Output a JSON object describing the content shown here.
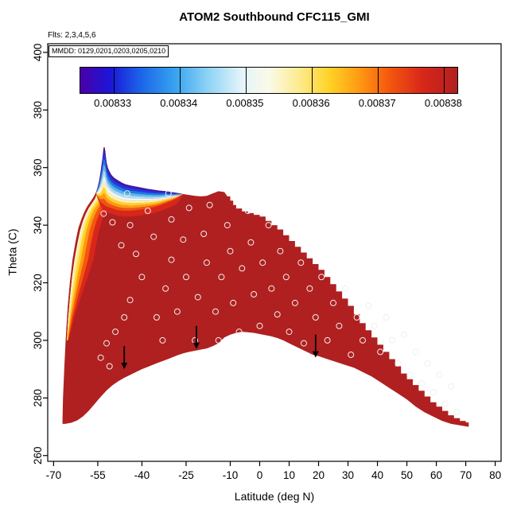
{
  "title": "ATOM2 Southbound CFC115_GMI",
  "annotations": {
    "flights": "Flts: 2,3,4,5,6",
    "mmdd": "MMDD: 0129,0201,0203,0205,0210"
  },
  "chart_data": {
    "type": "filled_contour",
    "title": "ATOM2 Southbound CFC115_GMI",
    "xlabel": "Latitude (deg N)",
    "ylabel": "Theta (C)",
    "x_ticks": [
      -70,
      -55,
      -40,
      -25,
      -10,
      0,
      10,
      20,
      30,
      40,
      50,
      60,
      70,
      80
    ],
    "y_ticks": [
      260,
      280,
      300,
      320,
      340,
      360,
      380,
      400
    ],
    "xlim": [
      -72,
      82
    ],
    "ylim": [
      258,
      403
    ],
    "grid": false,
    "legend_position": "top-inside",
    "colorbar": {
      "label_values": [
        "0.00833",
        "0.00834",
        "0.00835",
        "0.00836",
        "0.00837",
        "0.00838"
      ],
      "tick_values": [
        0.00833,
        0.00834,
        0.00835,
        0.00836,
        0.00837,
        0.00838
      ],
      "range": [
        0.008325,
        0.008382
      ],
      "gradient": [
        [
          0,
          "#4a00a8"
        ],
        [
          0.08,
          "#1b16d8"
        ],
        [
          0.16,
          "#1c64e8"
        ],
        [
          0.25,
          "#36a3f0"
        ],
        [
          0.34,
          "#90d4f5"
        ],
        [
          0.43,
          "#e4f5fa"
        ],
        [
          0.5,
          "#fafae8"
        ],
        [
          0.58,
          "#fdeb90"
        ],
        [
          0.66,
          "#ffd326"
        ],
        [
          0.74,
          "#ff9a12"
        ],
        [
          0.82,
          "#f4570e"
        ],
        [
          0.91,
          "#d8261a"
        ],
        [
          1,
          "#b02020"
        ]
      ]
    },
    "base_fill": "#b02020",
    "step_from_lat": -11,
    "top_edge": [
      [
        -67,
        271
      ],
      [
        -66.8,
        280
      ],
      [
        -66.3,
        292
      ],
      [
        -65.8,
        302
      ],
      [
        -65.2,
        312
      ],
      [
        -64.5,
        320
      ],
      [
        -63.6,
        328
      ],
      [
        -62.6,
        334
      ],
      [
        -61.6,
        339
      ],
      [
        -60.6,
        342
      ],
      [
        -59.6,
        344.5
      ],
      [
        -58.6,
        346.5
      ],
      [
        -57.6,
        348
      ],
      [
        -56.6,
        349.5
      ],
      [
        -55.8,
        351
      ],
      [
        -55.2,
        352.5
      ],
      [
        -54.6,
        355
      ],
      [
        -54.1,
        358
      ],
      [
        -53.7,
        361
      ],
      [
        -53.3,
        364
      ],
      [
        -53,
        367
      ],
      [
        -52.6,
        367
      ],
      [
        -52.2,
        363
      ],
      [
        -51.8,
        360.5
      ],
      [
        -51.2,
        359
      ],
      [
        -50.4,
        357.5
      ],
      [
        -49.5,
        356.5
      ],
      [
        -48.5,
        355.8
      ],
      [
        -47.5,
        355.2
      ],
      [
        -46.5,
        354.6
      ],
      [
        -45.5,
        354.2
      ],
      [
        -44,
        353.8
      ],
      [
        -42,
        353.4
      ],
      [
        -40,
        353
      ],
      [
        -38,
        352.6
      ],
      [
        -36,
        352.3
      ],
      [
        -34,
        352
      ],
      [
        -32,
        351.8
      ],
      [
        -30,
        351.5
      ],
      [
        -28,
        351.2
      ],
      [
        -26,
        350.8
      ],
      [
        -24,
        350.5
      ],
      [
        -22,
        350.2
      ],
      [
        -20,
        350
      ],
      [
        -18,
        350.2
      ],
      [
        -16,
        351
      ],
      [
        -14,
        351.8
      ],
      [
        -12,
        351.5
      ],
      [
        -11,
        350
      ],
      [
        -10,
        348.5
      ],
      [
        -9,
        347
      ],
      [
        -8,
        345.8
      ],
      [
        -6,
        344.8
      ],
      [
        -4,
        344.2
      ],
      [
        -2,
        343.6
      ],
      [
        0,
        343
      ],
      [
        2,
        341.5
      ],
      [
        4,
        340
      ],
      [
        6,
        338.5
      ],
      [
        8,
        336.5
      ],
      [
        10,
        334.5
      ],
      [
        12,
        332.5
      ],
      [
        14,
        330.5
      ],
      [
        16,
        328.5
      ],
      [
        18,
        326.5
      ],
      [
        20,
        324.5
      ],
      [
        22,
        322
      ],
      [
        24,
        319.5
      ],
      [
        26,
        317
      ],
      [
        28,
        314.5
      ],
      [
        30,
        312
      ],
      [
        32,
        309
      ],
      [
        34,
        306
      ],
      [
        36,
        303.5
      ],
      [
        38,
        301
      ],
      [
        40,
        298.5
      ],
      [
        42,
        296
      ],
      [
        44,
        293.5
      ],
      [
        46,
        291
      ],
      [
        48,
        288.5
      ],
      [
        50,
        286.5
      ],
      [
        52,
        284.5
      ],
      [
        54,
        282.5
      ],
      [
        56,
        280.5
      ],
      [
        58,
        278.5
      ],
      [
        60,
        277
      ],
      [
        62,
        275.5
      ],
      [
        64,
        274
      ],
      [
        66,
        273
      ],
      [
        68,
        272
      ],
      [
        70,
        271.5
      ],
      [
        71,
        271
      ]
    ],
    "bottom_edge": [
      [
        71,
        270
      ],
      [
        68,
        270.5
      ],
      [
        65,
        271
      ],
      [
        62,
        272
      ],
      [
        59,
        273.5
      ],
      [
        56,
        275
      ],
      [
        53,
        277
      ],
      [
        50,
        279.5
      ],
      [
        47,
        281.5
      ],
      [
        44,
        283.5
      ],
      [
        41,
        285.5
      ],
      [
        38,
        287.5
      ],
      [
        35,
        289
      ],
      [
        32,
        290.5
      ],
      [
        29,
        291.5
      ],
      [
        26,
        292.5
      ],
      [
        23,
        293.5
      ],
      [
        20,
        294.5
      ],
      [
        18,
        295
      ],
      [
        16,
        296
      ],
      [
        14,
        297
      ],
      [
        12,
        298
      ],
      [
        10,
        299
      ],
      [
        8,
        300
      ],
      [
        6,
        300.8
      ],
      [
        4,
        301.4
      ],
      [
        2,
        301.8
      ],
      [
        0,
        302.2
      ],
      [
        -2,
        302.6
      ],
      [
        -4,
        302.8
      ],
      [
        -6,
        303
      ],
      [
        -8,
        302.6
      ],
      [
        -10,
        302
      ],
      [
        -12,
        301
      ],
      [
        -13,
        300
      ],
      [
        -14,
        299
      ],
      [
        -16,
        298
      ],
      [
        -18,
        297.2
      ],
      [
        -20,
        296.8
      ],
      [
        -22,
        296.4
      ],
      [
        -24,
        296
      ],
      [
        -26,
        295.5
      ],
      [
        -28,
        294.8
      ],
      [
        -30,
        294
      ],
      [
        -32,
        293.2
      ],
      [
        -34,
        292.4
      ],
      [
        -36,
        291.6
      ],
      [
        -38,
        290.8
      ],
      [
        -40,
        290
      ],
      [
        -42,
        289
      ],
      [
        -44,
        288
      ],
      [
        -46,
        287
      ],
      [
        -48,
        285.8
      ],
      [
        -50,
        284.4
      ],
      [
        -52,
        282.6
      ],
      [
        -54,
        280.4
      ],
      [
        -56,
        278
      ],
      [
        -58,
        275.6
      ],
      [
        -60,
        273.6
      ],
      [
        -62,
        272.2
      ],
      [
        -64,
        271.4
      ],
      [
        -66,
        271
      ],
      [
        -67,
        271
      ]
    ],
    "peak_bands": {
      "range": [
        -55.5,
        -26
      ],
      "lower_boundary": [
        [
          -55.5,
          350.5
        ],
        [
          -54,
          348
        ],
        [
          -52,
          346.5
        ],
        [
          -50,
          345.8
        ],
        [
          -48,
          345.2
        ],
        [
          -46,
          345
        ],
        [
          -44,
          345
        ],
        [
          -42,
          345.2
        ],
        [
          -40,
          345.5
        ],
        [
          -38,
          345.8
        ],
        [
          -36,
          346.2
        ],
        [
          -34,
          346.8
        ],
        [
          -32,
          347.6
        ],
        [
          -30,
          348.4
        ],
        [
          -28,
          349.4
        ],
        [
          -26,
          350.8
        ]
      ],
      "colors": [
        "#3c18b5",
        "#1b3de0",
        "#1e7ae8",
        "#57b8f0",
        "#a8dcf4",
        "#ecf7fa",
        "#fdf3b0",
        "#ffd32e",
        "#ff9a16",
        "#ef5510"
      ],
      "under_color": "#d8261a",
      "under_offset": 2
    },
    "left_strip": {
      "edge": [
        [
          -65.5,
          300
        ],
        [
          -65,
          308
        ],
        [
          -64.4,
          315
        ],
        [
          -63.7,
          322
        ],
        [
          -62.9,
          328
        ],
        [
          -62,
          333
        ],
        [
          -61,
          338
        ],
        [
          -60,
          341.5
        ],
        [
          -59,
          344
        ],
        [
          -58,
          346
        ],
        [
          -57,
          347.5
        ],
        [
          -56,
          349
        ],
        [
          -55.2,
          351
        ],
        [
          -54.6,
          353
        ]
      ],
      "bands": [
        [
          "#f7f4d8",
          0.5
        ],
        [
          "#fdeb90",
          0.7
        ],
        [
          "#ffd326",
          0.9
        ],
        [
          "#ff9a12",
          1.1
        ],
        [
          "#f4570e",
          1.4
        ],
        [
          "#d8261a",
          1.8
        ]
      ]
    },
    "scatter": {
      "radius": 3.5,
      "stroke": "#efefef",
      "points": [
        [
          -53,
          344
        ],
        [
          -50,
          341
        ],
        [
          -52,
          299
        ],
        [
          -54,
          294
        ],
        [
          -51,
          291
        ],
        [
          -49,
          303
        ],
        [
          -46,
          308
        ],
        [
          -44,
          314
        ],
        [
          -47,
          333
        ],
        [
          -44,
          340
        ],
        [
          -42,
          330
        ],
        [
          -40,
          322
        ],
        [
          -38,
          345
        ],
        [
          -36,
          336
        ],
        [
          -35,
          308
        ],
        [
          -33,
          300
        ],
        [
          -32,
          318
        ],
        [
          -30,
          342
        ],
        [
          -30,
          328
        ],
        [
          -28,
          310
        ],
        [
          -26,
          335
        ],
        [
          -25,
          322
        ],
        [
          -24,
          346
        ],
        [
          -22,
          300
        ],
        [
          -21,
          315
        ],
        [
          -19,
          337
        ],
        [
          -18,
          327
        ],
        [
          -17,
          347
        ],
        [
          -15,
          310
        ],
        [
          -14,
          300
        ],
        [
          -13,
          322
        ],
        [
          -11,
          340
        ],
        [
          -10,
          331
        ],
        [
          -9,
          313
        ],
        [
          -7,
          303
        ],
        [
          -6,
          325
        ],
        [
          -4,
          345
        ],
        [
          -3,
          334
        ],
        [
          -2,
          316
        ],
        [
          0,
          305
        ],
        [
          1,
          327
        ],
        [
          3,
          340
        ],
        [
          4,
          318
        ],
        [
          6,
          309
        ],
        [
          7,
          331
        ],
        [
          9,
          322
        ],
        [
          10,
          303
        ],
        [
          12,
          313
        ],
        [
          14,
          327
        ],
        [
          15,
          299
        ],
        [
          17,
          318
        ],
        [
          19,
          308
        ],
        [
          21,
          322
        ],
        [
          23,
          300
        ],
        [
          25,
          313
        ],
        [
          27,
          305
        ],
        [
          29,
          318
        ],
        [
          31,
          295
        ],
        [
          33,
          308
        ],
        [
          35,
          300
        ],
        [
          37,
          312
        ],
        [
          39,
          305
        ],
        [
          41,
          296
        ],
        [
          43,
          308
        ],
        [
          45,
          300
        ],
        [
          47,
          292
        ],
        [
          49,
          302
        ],
        [
          51,
          288
        ],
        [
          53,
          296
        ],
        [
          55,
          285
        ],
        [
          57,
          292
        ],
        [
          59,
          282
        ],
        [
          61,
          288
        ],
        [
          63,
          278
        ],
        [
          65,
          284
        ],
        [
          67,
          275
        ],
        [
          -45,
          351
        ],
        [
          -31,
          351
        ]
      ]
    },
    "arrows": [
      {
        "lat": -46,
        "tip": 290,
        "tail": 298
      },
      {
        "lat": -21.5,
        "tip": 297,
        "tail": 305
      },
      {
        "lat": 19,
        "tip": 294,
        "tail": 302
      }
    ]
  },
  "colors": {
    "axis": "#000000",
    "background": "#ffffff"
  }
}
